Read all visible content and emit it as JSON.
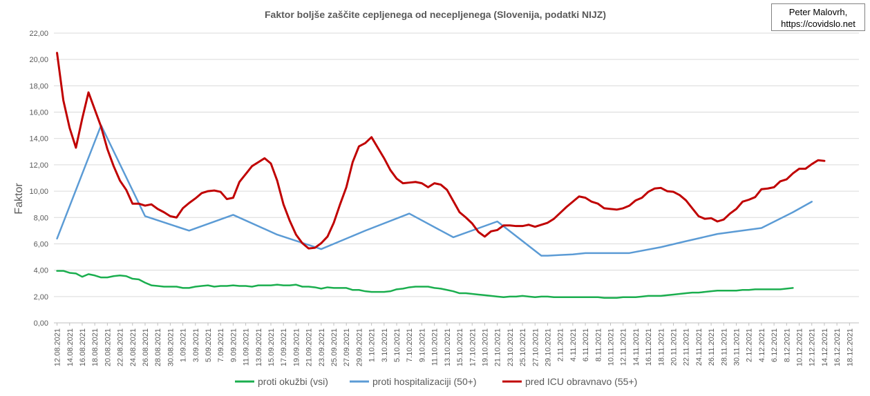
{
  "author": {
    "name": "Peter Malovrh,",
    "website": "https://covidslo.net"
  },
  "colors": {
    "okuzbe": "#1aae4e",
    "hospitalizacije": "#5b9bd5",
    "icu": "#c00000"
  },
  "chart_data": {
    "type": "line",
    "title": "Faktor boljše zaščite cepljenega od necepljenega (Slovenija, podatki NIJZ)",
    "xlabel": "",
    "ylabel": "Faktor",
    "ylim": [
      0,
      22
    ],
    "yticks": [
      "0,00",
      "2,00",
      "4,00",
      "6,00",
      "8,00",
      "10,00",
      "12,00",
      "14,00",
      "16,00",
      "18,00",
      "20,00",
      "22,00"
    ],
    "grid": true,
    "legend_position": "bottom",
    "x_tick_labels": [
      "12.08.2021",
      "14.08.2021",
      "16.08.2021",
      "18.08.2021",
      "20.08.2021",
      "22.08.2021",
      "24.08.2021",
      "26.08.2021",
      "28.08.2021",
      "30.08.2021",
      "1.09.2021",
      "3.09.2021",
      "5.09.2021",
      "7.09.2021",
      "9.09.2021",
      "11.09.2021",
      "13.09.2021",
      "15.09.2021",
      "17.09.2021",
      "19.09.2021",
      "21.09.2021",
      "23.09.2021",
      "25.09.2021",
      "27.09.2021",
      "29.09.2021",
      "1.10.2021",
      "3.10.2021",
      "5.10.2021",
      "7.10.2021",
      "9.10.2021",
      "11.10.2021",
      "13.10.2021",
      "15.10.2021",
      "17.10.2021",
      "19.10.2021",
      "21.10.2021",
      "23.10.2021",
      "25.10.2021",
      "27.10.2021",
      "29.10.2021",
      "2.11.2021",
      "4.11.2021",
      "6.11.2021",
      "8.11.2021",
      "10.11.2021",
      "12.11.2021",
      "14.11.2021",
      "16.11.2021",
      "18.11.2021",
      "20.11.2021",
      "22.11.2021",
      "24.11.2021",
      "26.11.2021",
      "28.11.2021",
      "30.11.2021",
      "2.12.2021",
      "4.12.2021",
      "6.12.2021",
      "8.12.2021",
      "10.12.2021",
      "12.12.2021",
      "14.12.2021",
      "16.12.2021",
      "18.12.2021"
    ],
    "series": [
      {
        "name": "proti okužbi (vsi)",
        "color_key": "okuzbe",
        "points": [
          [
            0,
            3.95
          ],
          [
            1,
            3.95
          ],
          [
            2,
            3.8
          ],
          [
            3,
            3.75
          ],
          [
            4,
            3.5
          ],
          [
            5,
            3.7
          ],
          [
            6,
            3.6
          ],
          [
            7,
            3.45
          ],
          [
            8,
            3.45
          ],
          [
            9,
            3.55
          ],
          [
            10,
            3.6
          ],
          [
            11,
            3.55
          ],
          [
            12,
            3.35
          ],
          [
            13,
            3.3
          ],
          [
            14,
            3.05
          ],
          [
            15,
            2.85
          ],
          [
            16,
            2.8
          ],
          [
            17,
            2.75
          ],
          [
            18,
            2.75
          ],
          [
            19,
            2.75
          ],
          [
            20,
            2.65
          ],
          [
            21,
            2.65
          ],
          [
            22,
            2.75
          ],
          [
            23,
            2.8
          ],
          [
            24,
            2.85
          ],
          [
            25,
            2.75
          ],
          [
            26,
            2.8
          ],
          [
            27,
            2.8
          ],
          [
            28,
            2.85
          ],
          [
            29,
            2.8
          ],
          [
            30,
            2.8
          ],
          [
            31,
            2.75
          ],
          [
            32,
            2.85
          ],
          [
            33,
            2.85
          ],
          [
            34,
            2.85
          ],
          [
            35,
            2.9
          ],
          [
            36,
            2.85
          ],
          [
            37,
            2.85
          ],
          [
            38,
            2.9
          ],
          [
            39,
            2.75
          ],
          [
            40,
            2.75
          ],
          [
            41,
            2.7
          ],
          [
            42,
            2.6
          ],
          [
            43,
            2.7
          ],
          [
            44,
            2.65
          ],
          [
            45,
            2.65
          ],
          [
            46,
            2.65
          ],
          [
            47,
            2.5
          ],
          [
            48,
            2.5
          ],
          [
            49,
            2.4
          ],
          [
            50,
            2.35
          ],
          [
            51,
            2.35
          ],
          [
            52,
            2.35
          ],
          [
            53,
            2.4
          ],
          [
            54,
            2.55
          ],
          [
            55,
            2.6
          ],
          [
            56,
            2.7
          ],
          [
            57,
            2.75
          ],
          [
            58,
            2.75
          ],
          [
            59,
            2.75
          ],
          [
            60,
            2.65
          ],
          [
            61,
            2.6
          ],
          [
            62,
            2.5
          ],
          [
            63,
            2.4
          ],
          [
            64,
            2.25
          ],
          [
            65,
            2.25
          ],
          [
            66,
            2.2
          ],
          [
            67,
            2.15
          ],
          [
            68,
            2.1
          ],
          [
            69,
            2.05
          ],
          [
            70,
            2.0
          ],
          [
            71,
            1.95
          ],
          [
            72,
            2.0
          ],
          [
            73,
            2.0
          ],
          [
            74,
            2.05
          ],
          [
            75,
            2.0
          ],
          [
            76,
            1.95
          ],
          [
            77,
            2.0
          ],
          [
            78,
            2.0
          ],
          [
            79,
            1.95
          ],
          [
            80,
            1.95
          ],
          [
            81,
            1.95
          ],
          [
            82,
            1.95
          ],
          [
            83,
            1.95
          ],
          [
            84,
            1.95
          ],
          [
            85,
            1.95
          ],
          [
            86,
            1.95
          ],
          [
            87,
            1.9
          ],
          [
            88,
            1.9
          ],
          [
            89,
            1.9
          ],
          [
            90,
            1.95
          ],
          [
            91,
            1.95
          ],
          [
            92,
            1.95
          ],
          [
            93,
            2.0
          ],
          [
            94,
            2.05
          ],
          [
            95,
            2.05
          ],
          [
            96,
            2.05
          ],
          [
            97,
            2.1
          ],
          [
            98,
            2.15
          ],
          [
            99,
            2.2
          ],
          [
            100,
            2.25
          ],
          [
            101,
            2.3
          ],
          [
            102,
            2.3
          ],
          [
            103,
            2.35
          ],
          [
            104,
            2.4
          ],
          [
            105,
            2.45
          ],
          [
            106,
            2.45
          ],
          [
            107,
            2.45
          ],
          [
            108,
            2.45
          ],
          [
            109,
            2.5
          ],
          [
            110,
            2.5
          ],
          [
            111,
            2.55
          ],
          [
            112,
            2.55
          ],
          [
            113,
            2.55
          ],
          [
            114,
            2.55
          ],
          [
            115,
            2.55
          ],
          [
            116,
            2.6
          ],
          [
            117,
            2.65
          ]
        ]
      },
      {
        "name": "proti hospitalizaciji (50+)",
        "color_key": "hospitalizacije",
        "points": [
          [
            0,
            6.4
          ],
          [
            7,
            15.0
          ],
          [
            14,
            8.1
          ],
          [
            21,
            7.0
          ],
          [
            28,
            8.2
          ],
          [
            35,
            6.7
          ],
          [
            42,
            5.6
          ],
          [
            49,
            7.0
          ],
          [
            56,
            8.3
          ],
          [
            63,
            6.5
          ],
          [
            70,
            7.7
          ],
          [
            77,
            5.1
          ],
          [
            78,
            5.1
          ],
          [
            80,
            5.15
          ],
          [
            82,
            5.2
          ],
          [
            84,
            5.3
          ],
          [
            91,
            5.3
          ],
          [
            96,
            5.75
          ],
          [
            100,
            6.2
          ],
          [
            105,
            6.75
          ],
          [
            112,
            7.2
          ],
          [
            117,
            8.4
          ],
          [
            120,
            9.2
          ]
        ]
      },
      {
        "name": "pred ICU obravnavo (55+)",
        "color_key": "icu",
        "points": [
          [
            0,
            20.5
          ],
          [
            1,
            16.9
          ],
          [
            2,
            14.8
          ],
          [
            3,
            13.3
          ],
          [
            4,
            15.5
          ],
          [
            5,
            17.5
          ],
          [
            6,
            16.2
          ],
          [
            7,
            14.9
          ],
          [
            8,
            13.2
          ],
          [
            9,
            11.9
          ],
          [
            10,
            10.8
          ],
          [
            11,
            10.1
          ],
          [
            12,
            9.05
          ],
          [
            13,
            9.05
          ],
          [
            14,
            8.9
          ],
          [
            15,
            9.0
          ],
          [
            16,
            8.65
          ],
          [
            17,
            8.4
          ],
          [
            18,
            8.1
          ],
          [
            19,
            8.0
          ],
          [
            20,
            8.7
          ],
          [
            21,
            9.1
          ],
          [
            22,
            9.45
          ],
          [
            23,
            9.85
          ],
          [
            24,
            10.0
          ],
          [
            25,
            10.05
          ],
          [
            26,
            9.95
          ],
          [
            27,
            9.4
          ],
          [
            28,
            9.5
          ],
          [
            29,
            10.7
          ],
          [
            30,
            11.3
          ],
          [
            31,
            11.9
          ],
          [
            32,
            12.2
          ],
          [
            33,
            12.5
          ],
          [
            34,
            12.1
          ],
          [
            35,
            10.8
          ],
          [
            36,
            9.0
          ],
          [
            37,
            7.75
          ],
          [
            38,
            6.7
          ],
          [
            39,
            6.05
          ],
          [
            40,
            5.65
          ],
          [
            41,
            5.7
          ],
          [
            42,
            6.05
          ],
          [
            43,
            6.55
          ],
          [
            44,
            7.6
          ],
          [
            45,
            9.0
          ],
          [
            46,
            10.3
          ],
          [
            47,
            12.2
          ],
          [
            48,
            13.4
          ],
          [
            49,
            13.65
          ],
          [
            50,
            14.1
          ],
          [
            51,
            13.3
          ],
          [
            52,
            12.5
          ],
          [
            53,
            11.6
          ],
          [
            54,
            10.95
          ],
          [
            55,
            10.6
          ],
          [
            56,
            10.65
          ],
          [
            57,
            10.7
          ],
          [
            58,
            10.6
          ],
          [
            59,
            10.3
          ],
          [
            60,
            10.6
          ],
          [
            61,
            10.5
          ],
          [
            62,
            10.1
          ],
          [
            63,
            9.25
          ],
          [
            64,
            8.4
          ],
          [
            65,
            8.0
          ],
          [
            66,
            7.55
          ],
          [
            67,
            6.9
          ],
          [
            68,
            6.55
          ],
          [
            69,
            6.95
          ],
          [
            70,
            7.05
          ],
          [
            71,
            7.4
          ],
          [
            72,
            7.4
          ],
          [
            73,
            7.35
          ],
          [
            74,
            7.35
          ],
          [
            75,
            7.45
          ],
          [
            76,
            7.3
          ],
          [
            77,
            7.45
          ],
          [
            78,
            7.6
          ],
          [
            79,
            7.9
          ],
          [
            80,
            8.35
          ],
          [
            81,
            8.8
          ],
          [
            82,
            9.2
          ],
          [
            83,
            9.6
          ],
          [
            84,
            9.5
          ],
          [
            85,
            9.2
          ],
          [
            86,
            9.05
          ],
          [
            87,
            8.7
          ],
          [
            88,
            8.65
          ],
          [
            89,
            8.6
          ],
          [
            90,
            8.7
          ],
          [
            91,
            8.9
          ],
          [
            92,
            9.3
          ],
          [
            93,
            9.5
          ],
          [
            94,
            9.95
          ],
          [
            95,
            10.2
          ],
          [
            96,
            10.25
          ],
          [
            97,
            10.0
          ],
          [
            98,
            9.95
          ],
          [
            99,
            9.7
          ],
          [
            100,
            9.3
          ],
          [
            101,
            8.7
          ],
          [
            102,
            8.1
          ],
          [
            103,
            7.9
          ],
          [
            104,
            7.95
          ],
          [
            105,
            7.7
          ],
          [
            106,
            7.85
          ],
          [
            107,
            8.3
          ],
          [
            108,
            8.65
          ],
          [
            109,
            9.2
          ],
          [
            110,
            9.35
          ],
          [
            111,
            9.55
          ],
          [
            112,
            10.15
          ],
          [
            113,
            10.2
          ],
          [
            114,
            10.3
          ],
          [
            115,
            10.75
          ],
          [
            116,
            10.9
          ],
          [
            117,
            11.35
          ],
          [
            118,
            11.7
          ],
          [
            119,
            11.7
          ],
          [
            120,
            12.05
          ],
          [
            121,
            12.35
          ],
          [
            122,
            12.3
          ]
        ]
      }
    ]
  }
}
